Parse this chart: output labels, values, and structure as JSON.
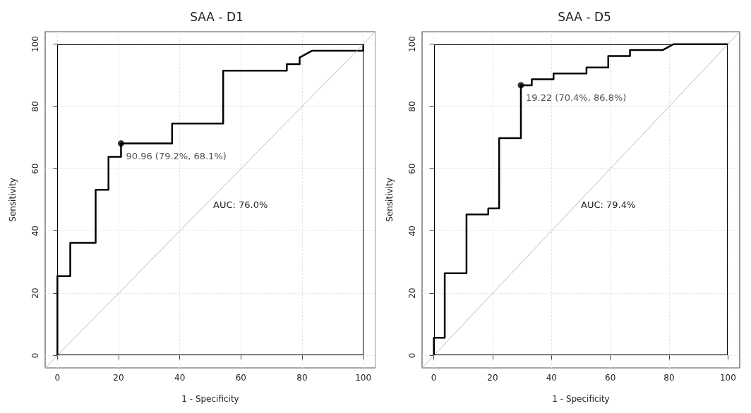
{
  "chart_data": [
    {
      "type": "line",
      "title": "SAA - D1",
      "xlabel": "1 - Specificity",
      "ylabel": "Sensitivity",
      "xlim": [
        -4,
        104
      ],
      "ylim": [
        -4,
        104
      ],
      "xticks": [
        0,
        20,
        40,
        60,
        80,
        100
      ],
      "yticks": [
        0,
        20,
        40,
        60,
        80,
        100
      ],
      "grid": true,
      "series": [
        {
          "type": "line",
          "color": "#000000",
          "marker": "none",
          "x": [
            0,
            0,
            4.2,
            4.2,
            12.5,
            12.5,
            16.7,
            16.7,
            20.8,
            20.8,
            37.5,
            37.5,
            54.2,
            54.2,
            75,
            75,
            79.2,
            79.2,
            83.3,
            100,
            100
          ],
          "values": [
            0,
            25.5,
            25.5,
            36.2,
            36.2,
            53.2,
            53.2,
            63.8,
            63.8,
            68.1,
            68.1,
            74.5,
            74.5,
            91.5,
            91.5,
            93.6,
            93.6,
            95.7,
            97.9,
            97.9,
            100
          ]
        },
        {
          "color": "#bdbdbd",
          "marker": "none",
          "x": [
            -4,
            104
          ],
          "values": [
            -4,
            104
          ]
        },
        {
          "type": "scatter",
          "color": "#000000",
          "marker": "circle",
          "x": [
            20.8
          ],
          "values": [
            68.1
          ]
        }
      ],
      "annotations": [
        {
          "text": "90.96 (79.2%, 68.1%)",
          "x": 20.8,
          "y": 68.1
        },
        "AUC: 76.0%"
      ]
    },
    {
      "type": "line",
      "title": "SAA - D5",
      "xlabel": "1 - Specificity",
      "ylabel": "Sensitivity",
      "xlim": [
        -4,
        104
      ],
      "ylim": [
        -4,
        104
      ],
      "xticks": [
        0,
        20,
        40,
        60,
        80,
        100
      ],
      "yticks": [
        0,
        20,
        40,
        60,
        80,
        100
      ],
      "grid": true,
      "series": [
        {
          "type": "line",
          "color": "#000000",
          "marker": "none",
          "x": [
            0,
            0,
            3.7,
            3.7,
            11.1,
            11.1,
            18.5,
            18.5,
            22.2,
            22.2,
            29.6,
            29.6,
            33.3,
            33.3,
            40.7,
            40.7,
            51.9,
            51.9,
            59.3,
            59.3,
            66.7,
            66.7,
            77.8,
            81.5,
            100
          ],
          "values": [
            0,
            5.7,
            5.7,
            26.4,
            26.4,
            45.3,
            45.3,
            47.2,
            47.2,
            69.8,
            69.8,
            86.8,
            86.8,
            88.7,
            88.7,
            90.6,
            90.6,
            92.5,
            92.5,
            96.2,
            96.2,
            98.1,
            98.1,
            100,
            100
          ]
        },
        {
          "color": "#bdbdbd",
          "marker": "none",
          "x": [
            -4,
            104
          ],
          "values": [
            -4,
            104
          ]
        },
        {
          "type": "scatter",
          "color": "#000000",
          "marker": "circle",
          "x": [
            29.6
          ],
          "values": [
            86.8
          ]
        }
      ],
      "annotations": [
        {
          "text": "19.22 (70.4%, 86.8%)",
          "x": 29.6,
          "y": 86.8
        },
        "AUC: 79.4%"
      ]
    }
  ]
}
